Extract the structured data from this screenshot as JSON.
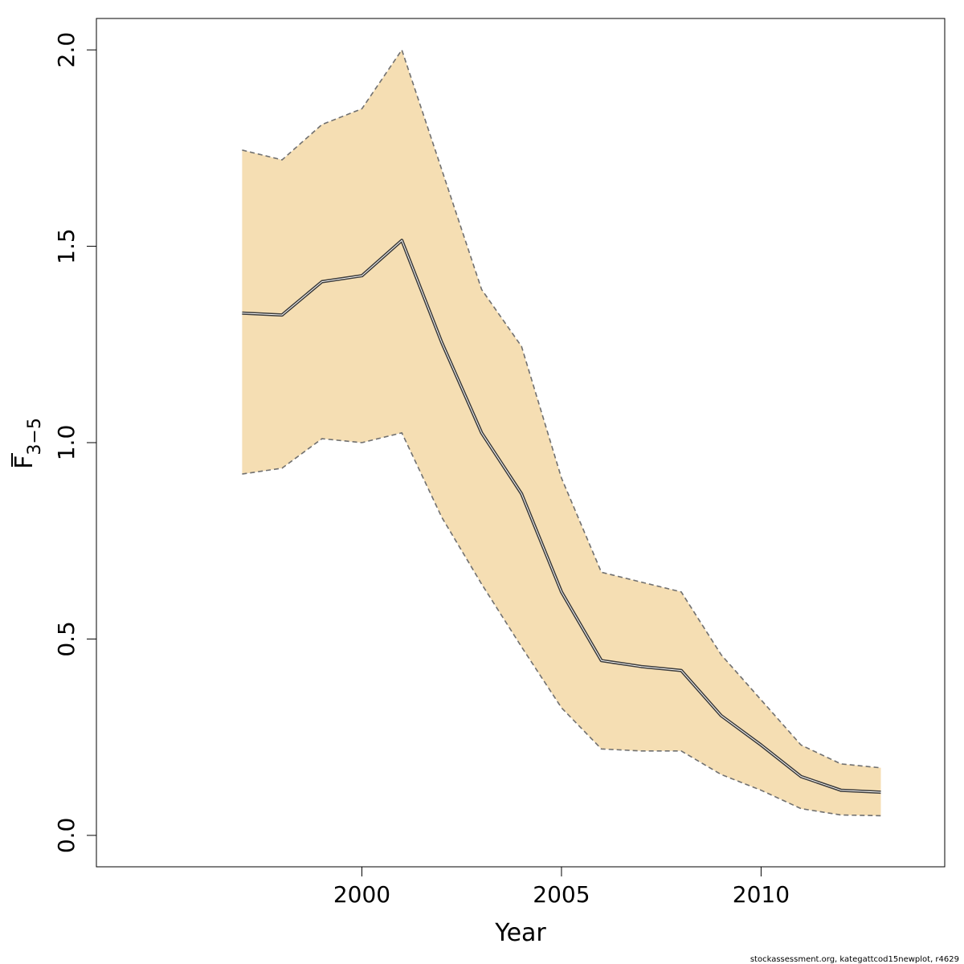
{
  "chart_data": {
    "type": "area",
    "x": [
      1997,
      1998,
      1999,
      2000,
      2001,
      2002,
      2003,
      2004,
      2005,
      2006,
      2007,
      2008,
      2009,
      2010,
      2011,
      2012,
      2013
    ],
    "series": [
      {
        "role": "estimate",
        "values": [
          1.33,
          1.325,
          1.41,
          1.425,
          1.515,
          1.255,
          1.025,
          0.87,
          0.62,
          0.445,
          0.43,
          0.42,
          0.305,
          0.23,
          0.15,
          0.115,
          0.11
        ]
      },
      {
        "role": "upper",
        "values": [
          1.745,
          1.72,
          1.81,
          1.85,
          2.0,
          1.695,
          1.39,
          1.245,
          0.91,
          0.67,
          0.645,
          0.62,
          0.46,
          0.345,
          0.23,
          0.182,
          0.172
        ]
      },
      {
        "role": "lower",
        "values": [
          0.92,
          0.935,
          1.01,
          1.0,
          1.025,
          0.81,
          0.64,
          0.48,
          0.325,
          0.22,
          0.215,
          0.215,
          0.155,
          0.115,
          0.068,
          0.052,
          0.05
        ]
      }
    ],
    "xlabel": "Year",
    "ylabel": "F",
    "ylabel_subscript": "3−5",
    "xlim": [
      1993.35,
      2014.6
    ],
    "ylim": [
      -0.08,
      2.08
    ],
    "xticks": [
      2000,
      2005,
      2010
    ],
    "yticks": [
      0.0,
      0.5,
      1.0,
      1.5,
      2.0
    ],
    "xtick_labels": [
      "2000",
      "2005",
      "2010"
    ],
    "ytick_labels": [
      "0.0",
      "0.5",
      "1.0",
      "1.5",
      "2.0"
    ],
    "grid": false,
    "legend": "none",
    "colors": {
      "band": "#F5DEB3",
      "band_border": "#707070",
      "line": "#3a3a3a",
      "line_halo": "#ffffff",
      "axis": "#000000"
    }
  },
  "footer": "stockassessment.org, kategattcod15newplot, r4629"
}
